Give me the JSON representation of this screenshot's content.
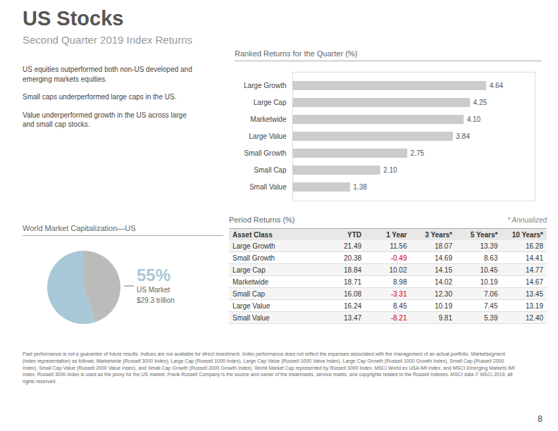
{
  "title": "US Stocks",
  "subtitle": "Second Quarter 2019 Index Returns",
  "annotations": [
    "US equities outperformed both non-US developed and\nemerging markets equities.",
    "Small caps underperformed large caps in the US.",
    "Value underperformed growth in the US across large\nand small cap stocks."
  ],
  "caption": "Past performance is not a guarantee of future results. Indices are not available for direct investment. Index performance does not reflect the expenses associated with the management of an actual portfolio. Marketsegment (index representation) as follows: Marketwide (Russell 3000 Index), Large Cap (Russell 1000 Index), Large Cap Value (Russell 1000 Value Index), Large Cap Growth (Russell 1000 Growth Index), Small Cap (Russell 2000 Index), Small Cap Value (Russell 2000 Value Index), and Small Cap Growth (Russell 2000 Growth Index). World Market Cap represented by Russell 3000 Index, MSCI World ex USA IMI Index, and MSCI Emerging Markets IMI Index. Russell 3000 Index is used as the proxy for the US market. Frank Russell Company is the source and owner of the trademarks, service marks, and copyrights related to the Russell Indexes. MSCI data © MSCI 2019, all rights reserved.",
  "page_number": "8",
  "chart_data": [
    {
      "type": "bar",
      "title": "Ranked Returns for the Quarter (%)",
      "orientation": "horizontal",
      "categories": [
        "Large Growth",
        "Large Cap",
        "Marketwide",
        "Large Value",
        "Small Growth",
        "Small Cap",
        "Small Value"
      ],
      "values": [
        4.64,
        4.25,
        4.1,
        3.84,
        2.75,
        2.1,
        1.38
      ],
      "value_labels": [
        "4.64",
        "4.25",
        "4.10",
        "3.84",
        "2.75",
        "2.10",
        "1.38"
      ],
      "data_labels": true,
      "color": "#cccccc",
      "xlim": [
        0,
        5.8
      ],
      "tick_labels": "y"
    },
    {
      "type": "pie",
      "title": "World Market Capitalization—US",
      "categories": [
        "US Market",
        null
      ],
      "values": [
        55,
        45
      ],
      "value_labels": [
        "55%",
        null
      ],
      "colors": [
        "#a8c8d8",
        "#bbbbbb"
      ],
      "annotations": [
        "$29.3 trillion"
      ]
    },
    {
      "type": "table",
      "title": "Period Returns (%)",
      "annotations": [
        "* Annualized"
      ],
      "columns": [
        "Asset Class",
        "YTD",
        "1 Year",
        "3 Years*",
        "5 Years*",
        "10 Years*"
      ],
      "rows": [
        [
          "Large Growth",
          "21.49",
          "11.56",
          "18.07",
          "13.39",
          "16.28"
        ],
        [
          "Small Growth",
          "20.38",
          "-0.49",
          "14.69",
          "8.63",
          "14.41"
        ],
        [
          "Large Cap",
          "18.84",
          "10.02",
          "14.15",
          "10.45",
          "14.77"
        ],
        [
          "Marketwide",
          "18.71",
          "8.98",
          "14.02",
          "10.19",
          "14.67"
        ],
        [
          "Small Cap",
          "16.08",
          "-3.31",
          "12.30",
          "7.06",
          "13.45"
        ],
        [
          "Large Value",
          "16.24",
          "8.45",
          "10.19",
          "7.45",
          "13.19"
        ],
        [
          "Small Value",
          "13.47",
          "-8.21",
          "9.81",
          "5.39",
          "12.40"
        ]
      ],
      "color": "#cc0000"
    }
  ]
}
